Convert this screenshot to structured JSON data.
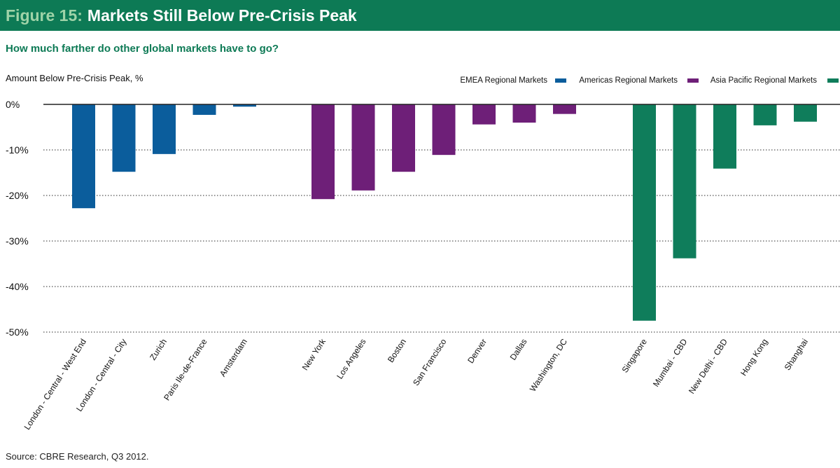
{
  "header": {
    "figure_number": "Figure 15:",
    "title": "Markets Still Below Pre-Crisis Peak"
  },
  "subtitle": "How much farther do other global markets have to go?",
  "source": "Source: CBRE Research, Q3 2012.",
  "colors": {
    "banner": "#0d7a55",
    "subtitle": "#0d7a55",
    "emea": "#0b5d9c",
    "americas": "#6e1f78",
    "asia_pacific": "#0f7d5b"
  },
  "chart_data": {
    "type": "bar",
    "ylabel": "Amount Below Pre-Crisis Peak, %",
    "ylim": [
      -50,
      0
    ],
    "yticks": [
      0,
      -10,
      -20,
      -30,
      -40,
      -50
    ],
    "ytick_labels": [
      "0%",
      "-10%",
      "-20%",
      "-30%",
      "-40%",
      "-50%"
    ],
    "grid": true,
    "legend_position": "top-right",
    "series": [
      {
        "name": "EMEA Regional Markets",
        "color": "#0b5d9c",
        "categories": [
          "London - Central - West End",
          "London - Central - City",
          "Zurich",
          "Paris Ile-de-France",
          "Amsterdam"
        ],
        "values": [
          -22.8,
          -14.8,
          -10.9,
          -2.3,
          -0.5
        ]
      },
      {
        "name": "Americas Regional Markets",
        "color": "#6e1f78",
        "categories": [
          "New York",
          "Los Angeles",
          "Boston",
          "San Francisco",
          "Denver",
          "Dallas",
          "Washington, DC"
        ],
        "values": [
          -20.8,
          -18.9,
          -14.8,
          -11.1,
          -4.4,
          -4.0,
          -2.1
        ]
      },
      {
        "name": "Asia Pacific Regional Markets",
        "color": "#0f7d5b",
        "categories": [
          "Singapore",
          "Mumbai - CBD",
          "New Delhi - CBD",
          "Hong Kong",
          "Shanghai"
        ],
        "values": [
          -47.5,
          -33.8,
          -14.1,
          -4.6,
          -3.8
        ]
      }
    ]
  }
}
